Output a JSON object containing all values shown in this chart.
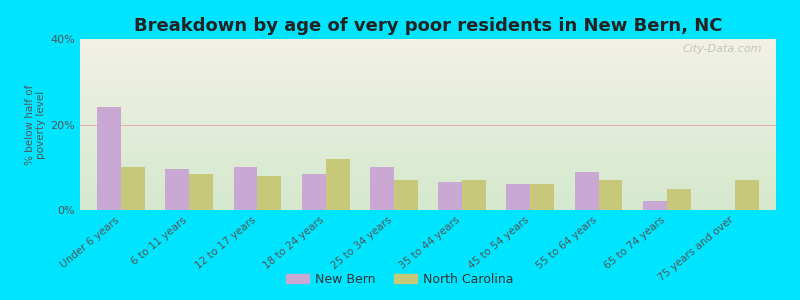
{
  "title": "Breakdown by age of very poor residents in New Bern, NC",
  "ylabel": "% below half of\npoverty level",
  "categories": [
    "Under 6 years",
    "6 to 11 years",
    "12 to 17 years",
    "18 to 24 years",
    "25 to 34 years",
    "35 to 44 years",
    "45 to 54 years",
    "55 to 64 years",
    "65 to 74 years",
    "75 years and over"
  ],
  "new_bern": [
    24.0,
    9.5,
    10.0,
    8.5,
    10.0,
    6.5,
    6.0,
    9.0,
    2.0,
    0.0
  ],
  "north_carolina": [
    10.0,
    8.5,
    8.0,
    12.0,
    7.0,
    7.0,
    6.0,
    7.0,
    5.0,
    7.0
  ],
  "new_bern_color": "#c9a8d4",
  "nc_color": "#c8c87a",
  "background_outer": "#00e5ff",
  "background_plot_top": "#f2f0e6",
  "background_plot_bottom": "#d4e8cc",
  "ylim": [
    0,
    40
  ],
  "yticks": [
    0,
    20,
    40
  ],
  "ytick_labels": [
    "0%",
    "20%",
    "40%"
  ],
  "bar_width": 0.35,
  "title_fontsize": 13,
  "watermark": "City-Data.com",
  "legend_new_bern": "New Bern",
  "legend_nc": "North Carolina"
}
